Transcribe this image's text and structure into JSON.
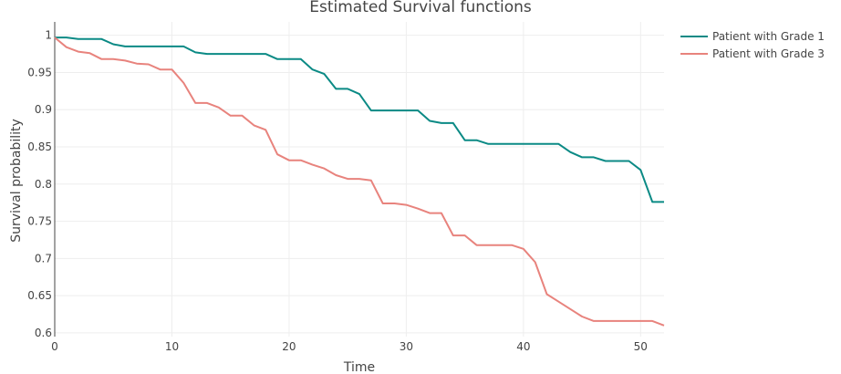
{
  "chart_data": {
    "type": "line",
    "title": "Estimated Survival functions",
    "xlabel": "Time",
    "ylabel": "Survival probability",
    "xlim": [
      0,
      52
    ],
    "ylim": [
      0.595,
      1.018
    ],
    "xticks": [
      "0",
      "10",
      "20",
      "30",
      "40",
      "50"
    ],
    "yticks": [
      "0.6",
      "0.65",
      "0.7",
      "0.75",
      "0.8",
      "0.85",
      "0.9",
      "0.95",
      "1"
    ],
    "grid": true,
    "legend": "top-right",
    "series": [
      {
        "name": "Patient with Grade 1",
        "color": "#0b8a85",
        "x": [
          0,
          1,
          2,
          3,
          4,
          5,
          6,
          7,
          8,
          9,
          10,
          11,
          12,
          13,
          14,
          15,
          16,
          17,
          18,
          19,
          20,
          21,
          22,
          23,
          24,
          25,
          26,
          27,
          28,
          29,
          30,
          31,
          32,
          33,
          34,
          35,
          36,
          37,
          38,
          39,
          40,
          41,
          42,
          43,
          44,
          45,
          46,
          47,
          48,
          49,
          50,
          51,
          52
        ],
        "y": [
          0.997,
          0.997,
          0.995,
          0.995,
          0.995,
          0.988,
          0.985,
          0.985,
          0.985,
          0.985,
          0.985,
          0.985,
          0.977,
          0.975,
          0.975,
          0.975,
          0.975,
          0.975,
          0.975,
          0.968,
          0.968,
          0.968,
          0.954,
          0.948,
          0.928,
          0.928,
          0.921,
          0.899,
          0.899,
          0.899,
          0.899,
          0.899,
          0.885,
          0.882,
          0.882,
          0.859,
          0.859,
          0.854,
          0.854,
          0.854,
          0.854,
          0.854,
          0.854,
          0.854,
          0.843,
          0.836,
          0.836,
          0.831,
          0.831,
          0.831,
          0.819,
          0.776,
          0.776
        ]
      },
      {
        "name": "Patient with Grade 3",
        "color": "#e8837d",
        "x": [
          0,
          1,
          2,
          3,
          4,
          5,
          6,
          7,
          8,
          9,
          10,
          11,
          12,
          13,
          14,
          15,
          16,
          17,
          18,
          19,
          20,
          21,
          22,
          23,
          24,
          25,
          26,
          27,
          28,
          29,
          30,
          31,
          32,
          33,
          34,
          35,
          36,
          37,
          38,
          39,
          40,
          41,
          42,
          43,
          44,
          45,
          46,
          47,
          48,
          49,
          50,
          51,
          52
        ],
        "y": [
          0.997,
          0.984,
          0.978,
          0.976,
          0.968,
          0.968,
          0.966,
          0.962,
          0.961,
          0.954,
          0.954,
          0.936,
          0.909,
          0.909,
          0.903,
          0.892,
          0.892,
          0.879,
          0.873,
          0.84,
          0.832,
          0.832,
          0.826,
          0.821,
          0.812,
          0.807,
          0.807,
          0.805,
          0.774,
          0.774,
          0.772,
          0.767,
          0.761,
          0.761,
          0.731,
          0.731,
          0.718,
          0.718,
          0.718,
          0.718,
          0.713,
          0.695,
          0.652,
          0.642,
          0.632,
          0.622,
          0.616,
          0.616,
          0.616,
          0.616,
          0.616,
          0.616,
          0.61
        ]
      }
    ]
  }
}
